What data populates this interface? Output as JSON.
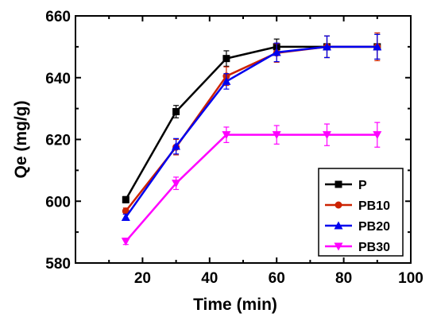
{
  "chart_data": {
    "type": "line",
    "title": "",
    "xlabel": "Time (min)",
    "ylabel": "Qe (mg/g)",
    "xlim": [
      0,
      100
    ],
    "ylim": [
      580,
      660
    ],
    "xticks": [
      "20",
      "40",
      "60",
      "80",
      "100"
    ],
    "yticks": [
      "580",
      "600",
      "620",
      "640",
      "660"
    ],
    "x": [
      15,
      30,
      45,
      60,
      75,
      90
    ],
    "legend_position": "bottom-right",
    "grid": false,
    "series": [
      {
        "name": "P",
        "color": "#000000",
        "marker": "square",
        "values": [
          600.5,
          629.0,
          646.2,
          650.0,
          650.0,
          650.0
        ],
        "errors": [
          1.0,
          2.0,
          2.5,
          2.5,
          3.5,
          4.0
        ]
      },
      {
        "name": "PB10",
        "color": "#cc2200",
        "marker": "circle",
        "values": [
          596.8,
          617.5,
          640.5,
          648.0,
          650.0,
          650.0
        ],
        "errors": [
          1.0,
          2.5,
          3.0,
          3.0,
          3.5,
          4.5
        ]
      },
      {
        "name": "PB20",
        "color": "#0000ee",
        "marker": "triangle-up",
        "values": [
          594.8,
          617.8,
          638.8,
          648.2,
          650.0,
          650.0
        ],
        "errors": [
          1.0,
          2.5,
          2.5,
          3.0,
          3.5,
          4.0
        ]
      },
      {
        "name": "PB30",
        "color": "#ff00ff",
        "marker": "triangle-down",
        "values": [
          587.0,
          605.8,
          621.5,
          621.5,
          621.5,
          621.5
        ],
        "errors": [
          1.0,
          2.0,
          2.5,
          3.0,
          3.5,
          4.0
        ]
      }
    ]
  }
}
